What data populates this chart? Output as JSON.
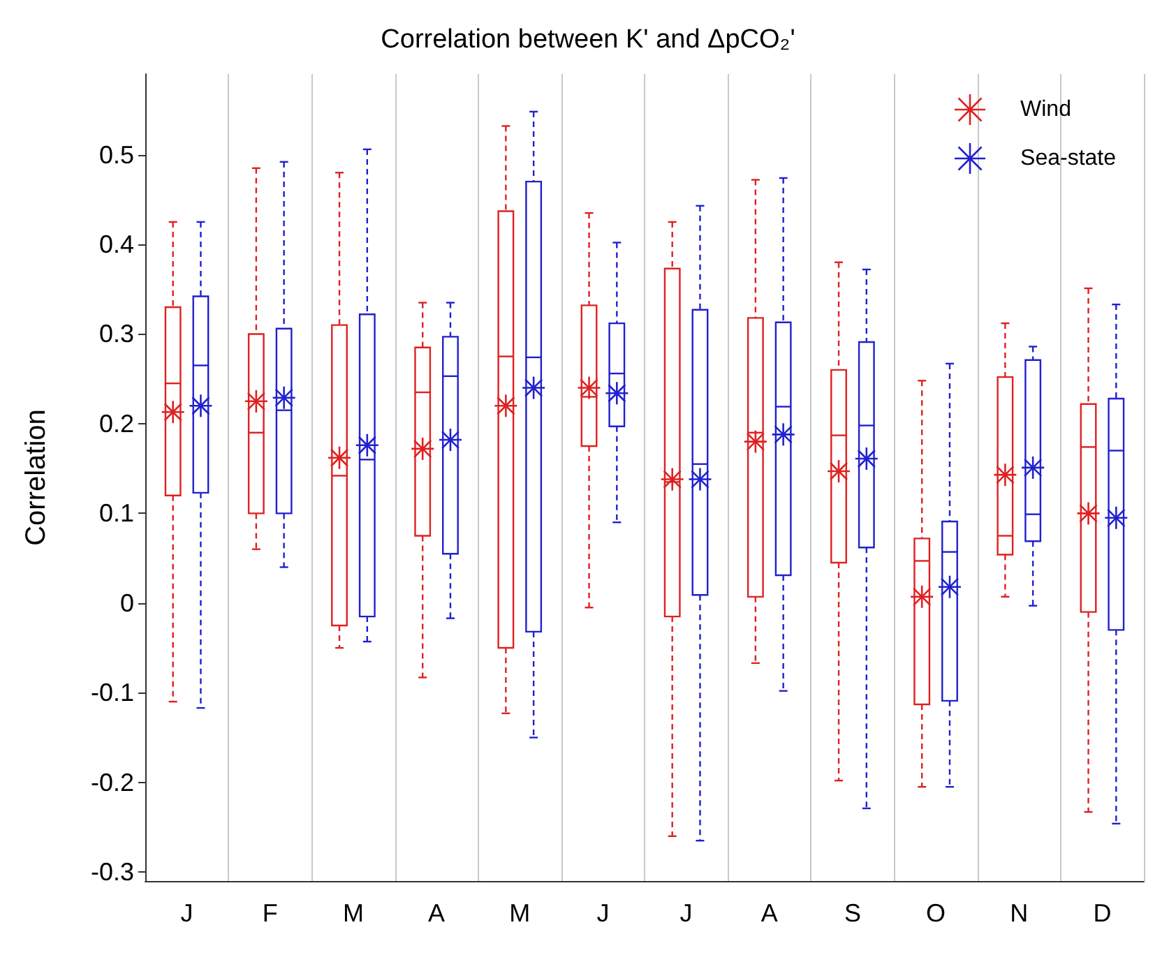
{
  "chart_data": {
    "type": "box",
    "title": "Correlation between K' and ΔpCO₂'",
    "ylabel": "Correlation",
    "categories": [
      "J",
      "F",
      "M",
      "A",
      "M",
      "J",
      "J",
      "A",
      "S",
      "O",
      "N",
      "D"
    ],
    "ylim": [
      -0.31,
      0.59
    ],
    "yticks": [
      -0.3,
      -0.2,
      -0.1,
      0,
      0.1,
      0.2,
      0.3,
      0.4,
      0.5
    ],
    "grid": "x",
    "legend": "top right",
    "marker": "star",
    "line_style": "dashed",
    "series": [
      {
        "name": "Wind",
        "color": "#e02020",
        "boxes": [
          {
            "low": -0.11,
            "q1": 0.12,
            "median": 0.245,
            "q3": 0.33,
            "high": 0.425,
            "mean": 0.213
          },
          {
            "low": 0.06,
            "q1": 0.1,
            "median": 0.19,
            "q3": 0.3,
            "high": 0.485,
            "mean": 0.225
          },
          {
            "low": -0.05,
            "q1": -0.025,
            "median": 0.142,
            "q3": 0.31,
            "high": 0.48,
            "mean": 0.162
          },
          {
            "low": -0.083,
            "q1": 0.075,
            "median": 0.235,
            "q3": 0.285,
            "high": 0.335,
            "mean": 0.172
          },
          {
            "low": -0.123,
            "q1": -0.05,
            "median": 0.275,
            "q3": 0.437,
            "high": 0.532,
            "mean": 0.22
          },
          {
            "low": -0.005,
            "q1": 0.175,
            "median": 0.23,
            "q3": 0.332,
            "high": 0.435,
            "mean": 0.24
          },
          {
            "low": -0.26,
            "q1": -0.015,
            "median": 0.135,
            "q3": 0.373,
            "high": 0.425,
            "mean": 0.138
          },
          {
            "low": -0.067,
            "q1": 0.007,
            "median": 0.19,
            "q3": 0.318,
            "high": 0.472,
            "mean": 0.18
          },
          {
            "low": -0.198,
            "q1": 0.045,
            "median": 0.187,
            "q3": 0.26,
            "high": 0.38,
            "mean": 0.147
          },
          {
            "low": -0.205,
            "q1": -0.113,
            "median": 0.047,
            "q3": 0.072,
            "high": 0.248,
            "mean": 0.007
          },
          {
            "low": 0.007,
            "q1": 0.054,
            "median": 0.075,
            "q3": 0.252,
            "high": 0.312,
            "mean": 0.143
          },
          {
            "low": -0.233,
            "q1": -0.01,
            "median": 0.174,
            "q3": 0.222,
            "high": 0.351,
            "mean": 0.1
          }
        ]
      },
      {
        "name": "Sea-state",
        "color": "#2020d0",
        "boxes": [
          {
            "low": -0.117,
            "q1": 0.123,
            "median": 0.265,
            "q3": 0.342,
            "high": 0.425,
            "mean": 0.22
          },
          {
            "low": 0.04,
            "q1": 0.1,
            "median": 0.215,
            "q3": 0.306,
            "high": 0.492,
            "mean": 0.229
          },
          {
            "low": -0.043,
            "q1": -0.015,
            "median": 0.16,
            "q3": 0.322,
            "high": 0.506,
            "mean": 0.176
          },
          {
            "low": -0.017,
            "q1": 0.055,
            "median": 0.253,
            "q3": 0.297,
            "high": 0.335,
            "mean": 0.182
          },
          {
            "low": -0.15,
            "q1": -0.032,
            "median": 0.274,
            "q3": 0.47,
            "high": 0.548,
            "mean": 0.24
          },
          {
            "low": 0.09,
            "q1": 0.197,
            "median": 0.256,
            "q3": 0.312,
            "high": 0.402,
            "mean": 0.234
          },
          {
            "low": -0.265,
            "q1": 0.009,
            "median": 0.155,
            "q3": 0.327,
            "high": 0.443,
            "mean": 0.138
          },
          {
            "low": -0.098,
            "q1": 0.031,
            "median": 0.219,
            "q3": 0.313,
            "high": 0.474,
            "mean": 0.188
          },
          {
            "low": -0.229,
            "q1": 0.062,
            "median": 0.198,
            "q3": 0.291,
            "high": 0.372,
            "mean": 0.161
          },
          {
            "low": -0.205,
            "q1": -0.109,
            "median": 0.057,
            "q3": 0.091,
            "high": 0.267,
            "mean": 0.018
          },
          {
            "low": -0.003,
            "q1": 0.069,
            "median": 0.099,
            "q3": 0.271,
            "high": 0.286,
            "mean": 0.151
          },
          {
            "low": -0.246,
            "q1": -0.03,
            "median": 0.17,
            "q3": 0.228,
            "high": 0.333,
            "mean": 0.095
          }
        ]
      }
    ]
  }
}
